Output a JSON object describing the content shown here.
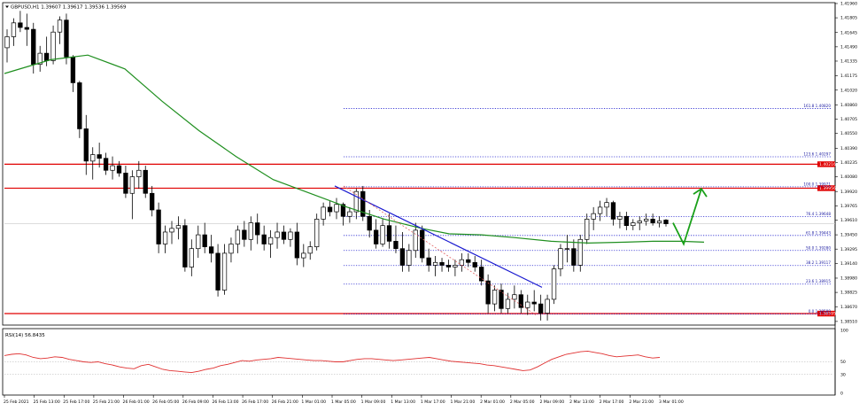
{
  "window": {
    "symbol_info": "GBPUSD,H1 1.39607 1.39617 1.39536 1.39569",
    "menu_icon": "triangle-down-icon"
  },
  "chart_data": {
    "type": "candlestick",
    "symbol": "GBPUSD",
    "timeframe": "H1",
    "ohlc_header": {
      "open": 1.39607,
      "high": 1.39617,
      "low": 1.39536,
      "close": 1.39569
    },
    "ylim": [
      1.3848,
      1.4195
    ],
    "y_ticks": [
      "1.41960",
      "1.41805",
      "1.41645",
      "1.41490",
      "1.41335",
      "1.41175",
      "1.41020",
      "1.40860",
      "1.40705",
      "1.40550",
      "1.40390",
      "1.40235",
      "1.40080",
      "1.39920",
      "1.39765",
      "1.39610",
      "1.39450",
      "1.39295",
      "1.39140",
      "1.38980",
      "1.38825",
      "1.38670",
      "1.38510"
    ],
    "x_ticks": [
      "25 Feb 2021",
      "25 Feb 13:00",
      "25 Feb 17:00",
      "25 Feb 21:00",
      "26 Feb 01:00",
      "26 Feb 05:00",
      "26 Feb 09:00",
      "26 Feb 13:00",
      "26 Feb 17:00",
      "26 Feb 21:00",
      "1 Mar 01:00",
      "1 Mar 05:00",
      "1 Mar 09:00",
      "1 Mar 13:00",
      "1 Mar 17:00",
      "1 Mar 21:00",
      "2 Mar 01:00",
      "2 Mar 05:00",
      "2 Mar 09:00",
      "2 Mar 13:00",
      "2 Mar 17:00",
      "2 Mar 21:00",
      "3 Mar 01:00"
    ],
    "candles": [
      [
        1.4148,
        1.4168,
        1.4132,
        1.416
      ],
      [
        1.416,
        1.418,
        1.415,
        1.4175
      ],
      [
        1.4175,
        1.4188,
        1.4165,
        1.417
      ],
      [
        1.417,
        1.4185,
        1.415,
        1.4168
      ],
      [
        1.4168,
        1.4175,
        1.412,
        1.413
      ],
      [
        1.413,
        1.415,
        1.4122,
        1.4142
      ],
      [
        1.4142,
        1.416,
        1.4128,
        1.4134
      ],
      [
        1.4134,
        1.4172,
        1.413,
        1.4165
      ],
      [
        1.4165,
        1.4182,
        1.4152,
        1.4178
      ],
      [
        1.4178,
        1.4185,
        1.413,
        1.4138
      ],
      [
        1.4138,
        1.414,
        1.41,
        1.411
      ],
      [
        1.411,
        1.4112,
        1.405,
        1.406
      ],
      [
        1.406,
        1.4075,
        1.401,
        1.4025
      ],
      [
        1.4025,
        1.404,
        1.4005,
        1.4032
      ],
      [
        1.4032,
        1.4045,
        1.4018,
        1.4028
      ],
      [
        1.4028,
        1.4034,
        1.401,
        1.4015
      ],
      [
        1.4015,
        1.403,
        1.4005,
        1.402
      ],
      [
        1.402,
        1.4025,
        1.4008,
        1.4012
      ],
      [
        1.4012,
        1.402,
        1.3985,
        1.399
      ],
      [
        1.399,
        1.4015,
        1.3962,
        1.4008
      ],
      [
        1.4008,
        1.4025,
        1.3995,
        1.4015
      ],
      [
        1.4015,
        1.402,
        1.3985,
        1.399
      ],
      [
        1.399,
        1.3998,
        1.3965,
        1.3972
      ],
      [
        1.3972,
        1.398,
        1.3925,
        1.3935
      ],
      [
        1.3935,
        1.3955,
        1.3925,
        1.3948
      ],
      [
        1.3948,
        1.396,
        1.3935,
        1.3952
      ],
      [
        1.3952,
        1.3965,
        1.394,
        1.3955
      ],
      [
        1.3955,
        1.3962,
        1.3905,
        1.391
      ],
      [
        1.391,
        1.394,
        1.39,
        1.393
      ],
      [
        1.393,
        1.3955,
        1.392,
        1.3945
      ],
      [
        1.3945,
        1.3958,
        1.3925,
        1.3932
      ],
      [
        1.3932,
        1.3945,
        1.3915,
        1.3925
      ],
      [
        1.3925,
        1.3935,
        1.3878,
        1.3885
      ],
      [
        1.3885,
        1.3935,
        1.388,
        1.3925
      ],
      [
        1.3925,
        1.3942,
        1.3915,
        1.3935
      ],
      [
        1.3935,
        1.3955,
        1.3925,
        1.395
      ],
      [
        1.395,
        1.396,
        1.3932,
        1.394
      ],
      [
        1.394,
        1.3965,
        1.3928,
        1.3958
      ],
      [
        1.3958,
        1.3968,
        1.3935,
        1.3945
      ],
      [
        1.3945,
        1.3955,
        1.3928,
        1.3935
      ],
      [
        1.3935,
        1.395,
        1.392,
        1.3942
      ],
      [
        1.3942,
        1.3958,
        1.393,
        1.3948
      ],
      [
        1.3948,
        1.3955,
        1.3935,
        1.394
      ],
      [
        1.394,
        1.3952,
        1.3932,
        1.3948
      ],
      [
        1.3948,
        1.3958,
        1.3912,
        1.392
      ],
      [
        1.392,
        1.3935,
        1.391,
        1.3925
      ],
      [
        1.3925,
        1.3938,
        1.3918,
        1.3932
      ],
      [
        1.3932,
        1.3968,
        1.3928,
        1.3962
      ],
      [
        1.3962,
        1.398,
        1.3955,
        1.3975
      ],
      [
        1.3975,
        1.3982,
        1.3965,
        1.397
      ],
      [
        1.397,
        1.3985,
        1.3962,
        1.3978
      ],
      [
        1.3978,
        1.398,
        1.3955,
        1.3965
      ],
      [
        1.3965,
        1.3975,
        1.3958,
        1.397
      ],
      [
        1.397,
        1.3995,
        1.3962,
        1.3992
      ],
      [
        1.3992,
        1.3998,
        1.396,
        1.3965
      ],
      [
        1.3965,
        1.3972,
        1.3942,
        1.395
      ],
      [
        1.395,
        1.3962,
        1.393,
        1.3935
      ],
      [
        1.3935,
        1.3962,
        1.3932,
        1.3955
      ],
      [
        1.3955,
        1.3968,
        1.393,
        1.3938
      ],
      [
        1.3938,
        1.3955,
        1.3925,
        1.393
      ],
      [
        1.393,
        1.3948,
        1.3905,
        1.3912
      ],
      [
        1.3912,
        1.3935,
        1.3905,
        1.3928
      ],
      [
        1.3928,
        1.3958,
        1.392,
        1.395
      ],
      [
        1.395,
        1.3955,
        1.3915,
        1.392
      ],
      [
        1.392,
        1.393,
        1.3905,
        1.3912
      ],
      [
        1.3912,
        1.3922,
        1.39,
        1.3915
      ],
      [
        1.3915,
        1.392,
        1.3905,
        1.3912
      ],
      [
        1.3912,
        1.3918,
        1.3905,
        1.391
      ],
      [
        1.391,
        1.3918,
        1.39,
        1.3912
      ],
      [
        1.3912,
        1.3925,
        1.3905,
        1.3918
      ],
      [
        1.3918,
        1.3925,
        1.391,
        1.3915
      ],
      [
        1.3915,
        1.3922,
        1.3905,
        1.391
      ],
      [
        1.391,
        1.3918,
        1.389,
        1.3895
      ],
      [
        1.3895,
        1.3902,
        1.386,
        1.387
      ],
      [
        1.387,
        1.389,
        1.3862,
        1.3885
      ],
      [
        1.3885,
        1.3892,
        1.386,
        1.3865
      ],
      [
        1.3865,
        1.3882,
        1.386,
        1.3875
      ],
      [
        1.3875,
        1.389,
        1.3865,
        1.388
      ],
      [
        1.388,
        1.3885,
        1.386,
        1.3866
      ],
      [
        1.3866,
        1.388,
        1.3858,
        1.3872
      ],
      [
        1.3872,
        1.3885,
        1.3862,
        1.387
      ],
      [
        1.387,
        1.388,
        1.3852,
        1.386
      ],
      [
        1.386,
        1.388,
        1.3852,
        1.3875
      ],
      [
        1.3875,
        1.3912,
        1.387,
        1.3908
      ],
      [
        1.3908,
        1.3935,
        1.39,
        1.393
      ],
      [
        1.393,
        1.3945,
        1.3915,
        1.393
      ],
      [
        1.393,
        1.394,
        1.3905,
        1.3912
      ],
      [
        1.3912,
        1.3945,
        1.3905,
        1.394
      ],
      [
        1.394,
        1.3968,
        1.3935,
        1.3962
      ],
      [
        1.3962,
        1.3975,
        1.395,
        1.3968
      ],
      [
        1.3968,
        1.3982,
        1.396,
        1.3975
      ],
      [
        1.3975,
        1.3985,
        1.3965,
        1.398
      ],
      [
        1.398,
        1.3982,
        1.3955,
        1.3962
      ],
      [
        1.3962,
        1.397,
        1.3952,
        1.3965
      ],
      [
        1.3965,
        1.397,
        1.395,
        1.3955
      ],
      [
        1.3955,
        1.3962,
        1.395,
        1.3958
      ],
      [
        1.3958,
        1.3965,
        1.395,
        1.396
      ],
      [
        1.396,
        1.3968,
        1.3955,
        1.3962
      ],
      [
        1.3962,
        1.3968,
        1.3955,
        1.3958
      ],
      [
        1.3958,
        1.3965,
        1.3953,
        1.396
      ],
      [
        1.3961,
        1.3962,
        1.3954,
        1.3957
      ]
    ],
    "ma_line": [
      [
        0,
        1.412
      ],
      [
        10,
        1.4135
      ],
      [
        18,
        1.414
      ],
      [
        26,
        1.4125
      ],
      [
        34,
        1.409
      ],
      [
        42,
        1.4058
      ],
      [
        50,
        1.403
      ],
      [
        58,
        1.4005
      ],
      [
        66,
        1.399
      ],
      [
        74,
        1.3975
      ],
      [
        82,
        1.3962
      ],
      [
        90,
        1.3952
      ],
      [
        96,
        1.3946
      ],
      [
        103,
        1.3945
      ],
      [
        110,
        1.3942
      ],
      [
        118,
        1.3938
      ],
      [
        126,
        1.3936
      ],
      [
        134,
        1.3937
      ],
      [
        140,
        1.3938
      ],
      [
        146,
        1.3938
      ],
      [
        151,
        1.3937
      ]
    ],
    "ma_index_range": [
      0,
      151
    ],
    "horizontal_levels": [
      {
        "price": 1.40216,
        "label": "1.40216",
        "color": "#e00000"
      },
      {
        "price": 1.39956,
        "label": "1.39956",
        "color": "#e00000"
      },
      {
        "price": 1.38595,
        "label": "1.38595",
        "color": "#e00000"
      },
      {
        "price": 1.39569,
        "color": "#c8c8c8",
        "style": "current"
      }
    ],
    "fibonacci": [
      {
        "ratio": "161.8",
        "price": 1.4082,
        "label": "161.8 1.40820"
      },
      {
        "ratio": "123.6",
        "price": 1.40297,
        "label": "123.6 1.40297"
      },
      {
        "ratio": "100.0",
        "price": 1.39971,
        "label": "100.0 1.39971"
      },
      {
        "ratio": "76.4",
        "price": 1.39648,
        "label": "76.4 1.39648"
      },
      {
        "ratio": "61.8",
        "price": 1.39443,
        "label": "61.8 1.39443"
      },
      {
        "ratio": "50.0",
        "price": 1.3928,
        "label": "50.0 1.39280"
      },
      {
        "ratio": "38.2",
        "price": 1.39117,
        "label": "38.2 1.39117"
      },
      {
        "ratio": "23.6",
        "price": 1.38915,
        "label": "23.6 1.38915"
      },
      {
        "ratio": "0.0",
        "price": 1.38589,
        "label": "0.0 1.38589"
      }
    ],
    "trend_line": {
      "from": [
        1.3995,
        1.3998
      ],
      "to": [
        1.3928,
        1.3888
      ],
      "color": "#1a1ad0"
    },
    "fib_anchor_line": {
      "from": [
        1.3998
      ],
      "to": [
        1.3858
      ],
      "color": "#e06060"
    },
    "arrow_annotation": {
      "points": [
        [
          1.3958
        ],
        [
          1.3935
        ],
        [
          1.3995
        ]
      ],
      "color": "#1aa01a"
    },
    "rsi": {
      "label": "RSI(14) 56.8435",
      "ylim": [
        0,
        100
      ],
      "y_ticks": [
        "100",
        "50",
        "30",
        "0"
      ],
      "values": [
        60,
        62,
        63,
        61,
        57,
        55,
        56,
        58,
        57,
        54,
        52,
        50,
        49,
        50,
        47,
        45,
        42,
        40,
        39,
        44,
        46,
        42,
        38,
        36,
        35,
        34,
        33,
        35,
        38,
        40,
        44,
        46,
        49,
        52,
        51,
        53,
        54,
        55,
        57,
        56,
        55,
        54,
        53,
        52,
        52,
        51,
        50,
        50,
        52,
        54,
        55,
        55,
        54,
        53,
        52,
        53,
        54,
        55,
        56,
        57,
        55,
        53,
        51,
        50,
        49,
        48,
        47,
        45,
        44,
        42,
        40,
        38,
        36,
        37,
        42,
        48,
        54,
        58,
        62,
        64,
        66,
        67,
        65,
        63,
        60,
        58,
        59,
        60,
        61,
        58,
        56,
        57
      ]
    }
  }
}
